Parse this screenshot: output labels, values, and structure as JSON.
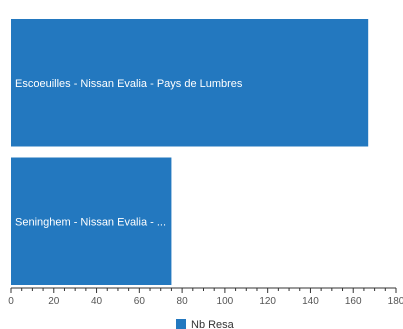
{
  "chart_data": {
    "type": "bar",
    "orientation": "horizontal",
    "categories": [
      "Escoeuilles - Nissan Evalia - Pays de Lumbres",
      "Seninghem - Nissan Evalia - ..."
    ],
    "series": [
      {
        "name": "Nb Resa",
        "values": [
          167,
          75
        ],
        "color": "#2378bf"
      }
    ],
    "xlim": [
      0,
      180
    ],
    "x_ticks": [
      0,
      20,
      40,
      60,
      80,
      100,
      120,
      140,
      160,
      180
    ],
    "grid": false,
    "legend_position": "bottom-center"
  }
}
